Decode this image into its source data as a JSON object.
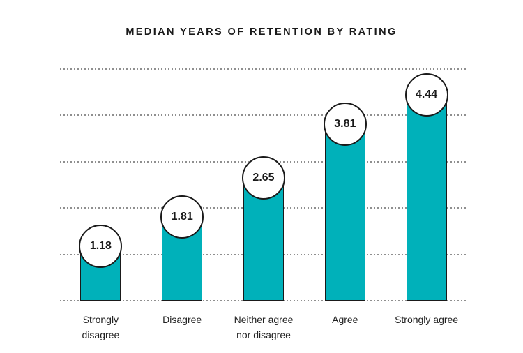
{
  "colors": {
    "background": "#ffffff",
    "bar_fill": "#00b1ba",
    "bar_outline": "#1a1a1a",
    "badge_fill": "#ffffff",
    "badge_outline": "#1a1a1a",
    "gridline": "#8f8f8f",
    "title_text": "#1a1a1a",
    "value_text": "#1a1a1a",
    "axis_label_text": "#222222"
  },
  "chart_data": {
    "type": "bar",
    "title": "MEDIAN YEARS OF RETENTION BY RATING",
    "categories": [
      "Strongly disagree",
      "Disagree",
      "Neither agree nor disagree",
      "Agree",
      "Strongly agree"
    ],
    "label_lines": [
      [
        "Strongly",
        "disagree"
      ],
      [
        "Disagree"
      ],
      [
        "Neither agree",
        "nor disagree"
      ],
      [
        "Agree"
      ],
      [
        "Strongly agree"
      ]
    ],
    "values": [
      1.18,
      1.81,
      2.65,
      3.81,
      4.44
    ],
    "value_labels": [
      "1.18",
      "1.81",
      "2.65",
      "3.81",
      "4.44"
    ],
    "xlabel": "",
    "ylabel": "",
    "ylim": [
      0,
      5
    ],
    "gridline_step": 1,
    "grid": "dotted-horizontal",
    "y_tick_labels_visible": false,
    "legend": "none",
    "value_marker": "white-circle-on-bar-top"
  }
}
